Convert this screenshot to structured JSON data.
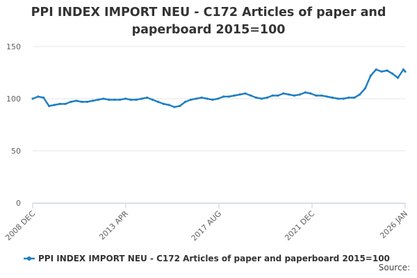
{
  "chart_data": {
    "type": "line",
    "title": "PPI INDEX IMPORT NEU - C172 Articles of paper and paperboard 2015=100",
    "xlabel": "",
    "ylabel": "",
    "x_tick_labels": [
      "2008 DEC",
      "2013 APR",
      "2017 AUG",
      "2021 DEC",
      "2026 JAN"
    ],
    "ylim": [
      0,
      150
    ],
    "y_ticks": [
      0,
      50,
      100,
      150
    ],
    "grid": "horizontal",
    "legend_position": "bottom",
    "series": [
      {
        "name": "PPI INDEX IMPORT NEU - C172 Articles of paper and paperboard 2015=100",
        "color": "#1f7fc1",
        "x": [
          "2008-12",
          "2009-03",
          "2009-06",
          "2009-09",
          "2009-12",
          "2010-03",
          "2010-06",
          "2010-09",
          "2010-12",
          "2011-03",
          "2011-06",
          "2011-09",
          "2011-12",
          "2012-03",
          "2012-06",
          "2012-09",
          "2012-12",
          "2013-03",
          "2013-06",
          "2013-09",
          "2013-12",
          "2014-03",
          "2014-06",
          "2014-09",
          "2014-12",
          "2015-03",
          "2015-06",
          "2015-09",
          "2015-12",
          "2016-03",
          "2016-06",
          "2016-09",
          "2016-12",
          "2017-03",
          "2017-06",
          "2017-09",
          "2017-12",
          "2018-03",
          "2018-06",
          "2018-09",
          "2018-12",
          "2019-03",
          "2019-06",
          "2019-09",
          "2019-12",
          "2020-03",
          "2020-06",
          "2020-09",
          "2020-12",
          "2021-03",
          "2021-06",
          "2021-09",
          "2021-12",
          "2022-03",
          "2022-06",
          "2022-09",
          "2022-12",
          "2023-03",
          "2023-06",
          "2023-09",
          "2023-12",
          "2024-03",
          "2024-06",
          "2024-09",
          "2024-12",
          "2025-03",
          "2025-06",
          "2025-09",
          "2025-12",
          "2026-01"
        ],
        "values": [
          100,
          102,
          101,
          93,
          94,
          95,
          95,
          97,
          98,
          97,
          97,
          98,
          99,
          100,
          99,
          99,
          99,
          100,
          99,
          99,
          100,
          101,
          99,
          97,
          95,
          94,
          92,
          93,
          97,
          99,
          100,
          101,
          100,
          99,
          100,
          102,
          102,
          103,
          104,
          105,
          103,
          101,
          100,
          101,
          103,
          103,
          105,
          104,
          103,
          104,
          106,
          105,
          103,
          103,
          102,
          101,
          100,
          100,
          101,
          101,
          104,
          110,
          122,
          128,
          126,
          127,
          124,
          120,
          128,
          126
        ]
      }
    ]
  },
  "footer": {
    "source_label": "Source:"
  }
}
